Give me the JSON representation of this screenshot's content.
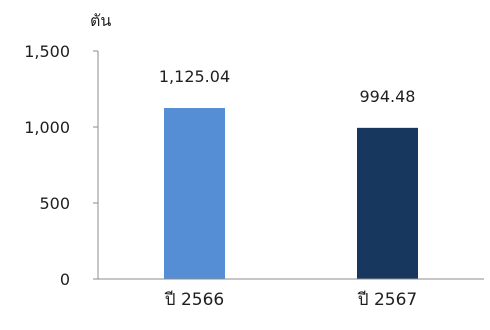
{
  "chart_data": {
    "type": "bar",
    "categories": [
      "ปี 2566",
      "ปี 2567"
    ],
    "values": [
      1125.04,
      994.48
    ],
    "data_labels": [
      "1,125.04",
      "994.48"
    ],
    "bar_colors": [
      "#558ed5",
      "#17375e"
    ],
    "ylabel": "ตัน",
    "ylim": [
      0,
      1500
    ],
    "yticks": [
      0,
      500,
      1000,
      1500
    ],
    "ytick_labels": [
      "0",
      "500",
      "1,000",
      "1,500"
    ],
    "grid": false,
    "legend": "none"
  }
}
